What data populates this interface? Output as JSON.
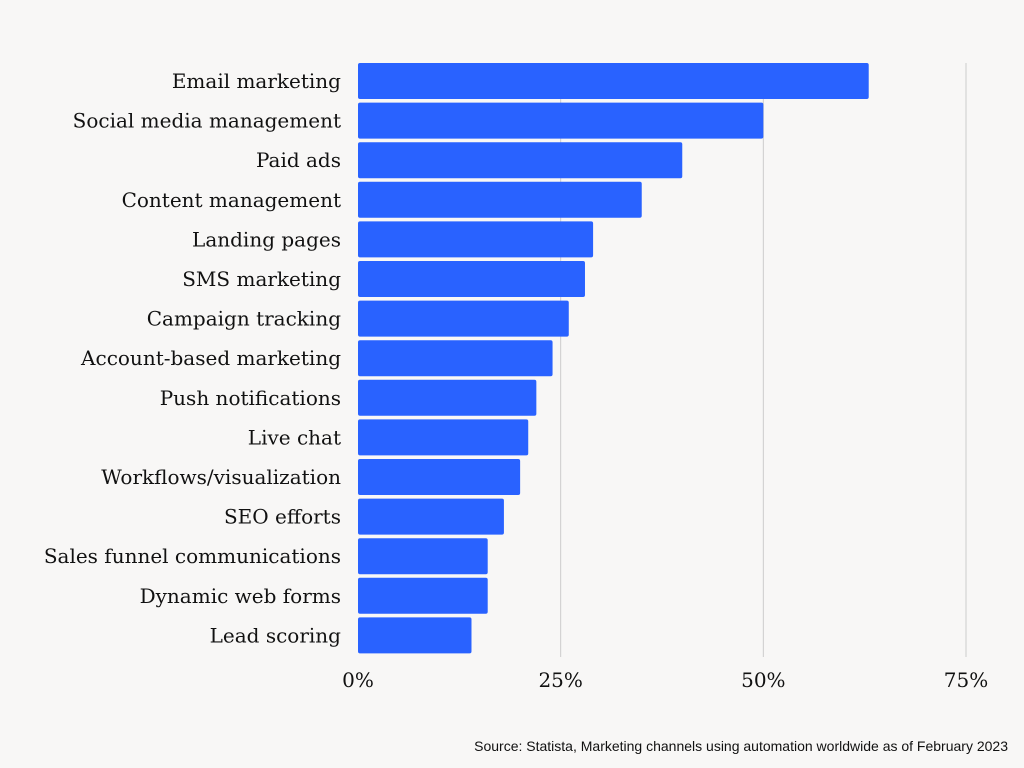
{
  "chart_data": {
    "type": "bar",
    "orientation": "horizontal",
    "title": "",
    "xlabel": "",
    "ylabel": "",
    "categories": [
      "Email marketing",
      "Social media management",
      "Paid ads",
      "Content management",
      "Landing pages",
      "SMS marketing",
      "Campaign tracking",
      "Account-based marketing",
      "Push notifications",
      "Live chat",
      "Workflows/visualization",
      "SEO efforts",
      "Sales funnel communications",
      "Dynamic web forms",
      "Lead scoring"
    ],
    "values": [
      63,
      50,
      40,
      35,
      29,
      28,
      26,
      24,
      22,
      21,
      20,
      18,
      16,
      16,
      14
    ],
    "unit": "%",
    "xlim": [
      0,
      75
    ],
    "ticks": [
      0,
      25,
      50,
      75
    ],
    "tick_labels": [
      "0%",
      "25%",
      "50%",
      "75%"
    ],
    "grid": true,
    "bar_color": "#2962ff",
    "grid_color": "#cccccc"
  },
  "source": "Source: Statista, Marketing channels using automation worldwide as of February 2023"
}
